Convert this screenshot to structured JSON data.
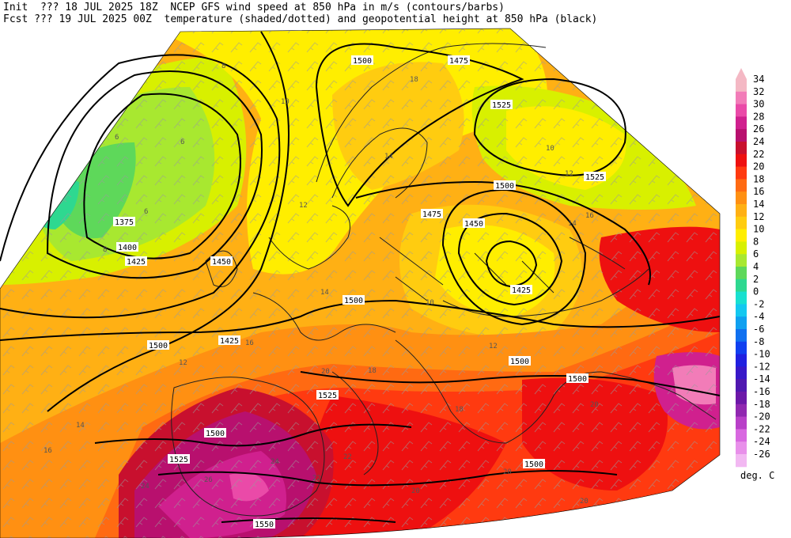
{
  "header": {
    "line1": "Init  ??? 18 JUL 2025 18Z  NCEP GFS wind speed at 850 hPa in m/s (contours/barbs)",
    "line2": "Fcst ??? 19 JUL 2025 00Z  temperature (shaded/dotted) and geopotential height at 850 hPa (black)"
  },
  "legend": {
    "unit": "deg. C",
    "levels": [
      {
        "v": "34",
        "c": "#f4b8c4"
      },
      {
        "v": "32",
        "c": "#f27cb8"
      },
      {
        "v": "30",
        "c": "#ea4aa8"
      },
      {
        "v": "28",
        "c": "#d0208e"
      },
      {
        "v": "26",
        "c": "#b8106e"
      },
      {
        "v": "24",
        "c": "#c8102e"
      },
      {
        "v": "22",
        "c": "#ee1010"
      },
      {
        "v": "20",
        "c": "#ff3a10"
      },
      {
        "v": "18",
        "c": "#ff6a12"
      },
      {
        "v": "16",
        "c": "#ff9012"
      },
      {
        "v": "14",
        "c": "#ffb014"
      },
      {
        "v": "12",
        "c": "#ffcc10"
      },
      {
        "v": "10",
        "c": "#ffee00"
      },
      {
        "v": "8",
        "c": "#d8f000"
      },
      {
        "v": "6",
        "c": "#a8e830"
      },
      {
        "v": "4",
        "c": "#5ed85a"
      },
      {
        "v": "2",
        "c": "#2ed890"
      },
      {
        "v": "0",
        "c": "#18e0d0"
      },
      {
        "v": "-2",
        "c": "#14c8f0"
      },
      {
        "v": "-4",
        "c": "#10a0f0"
      },
      {
        "v": "-6",
        "c": "#1070f0"
      },
      {
        "v": "-8",
        "c": "#1040f0"
      },
      {
        "v": "-10",
        "c": "#2020e0"
      },
      {
        "v": "-12",
        "c": "#3818c8"
      },
      {
        "v": "-14",
        "c": "#5018b0"
      },
      {
        "v": "-16",
        "c": "#6c18a8"
      },
      {
        "v": "-18",
        "c": "#9028b0"
      },
      {
        "v": "-20",
        "c": "#b840c8"
      },
      {
        "v": "-22",
        "c": "#d868e0"
      },
      {
        "v": "-24",
        "c": "#e890ea"
      },
      {
        "v": "-26",
        "c": "#f2b8f2"
      }
    ]
  },
  "height_labels": [
    "1375",
    "1400",
    "1425",
    "1450",
    "1475",
    "1500",
    "1525",
    "1550"
  ],
  "temp_labels": [
    "6",
    "8",
    "10",
    "12",
    "14",
    "16",
    "18",
    "20",
    "22",
    "24",
    "26"
  ],
  "colors": {
    "contour": "#000000",
    "barb": "#a0a0a0",
    "boundary": "#202020"
  }
}
